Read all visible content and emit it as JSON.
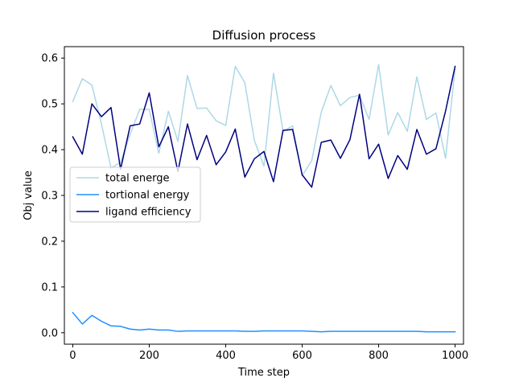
{
  "chart_data": {
    "type": "line",
    "title": "Diffusion process",
    "xlabel": "Time step",
    "ylabel": "Obj value",
    "xlim": [
      -22,
      1022
    ],
    "ylim": [
      -0.025,
      0.625
    ],
    "xticks": [
      0,
      200,
      400,
      600,
      800,
      1000
    ],
    "yticks": [
      0.0,
      0.1,
      0.2,
      0.3,
      0.4,
      0.5,
      0.6
    ],
    "ytick_labels": [
      "0.0",
      "0.1",
      "0.2",
      "0.3",
      "0.4",
      "0.5",
      "0.6"
    ],
    "grid": false,
    "legend_position": "center-left",
    "x": [
      0,
      25,
      50,
      75,
      100,
      125,
      150,
      175,
      200,
      225,
      250,
      275,
      300,
      325,
      350,
      375,
      400,
      425,
      450,
      475,
      500,
      525,
      550,
      575,
      600,
      625,
      650,
      675,
      700,
      725,
      750,
      775,
      800,
      825,
      850,
      875,
      900,
      925,
      950,
      975,
      1000
    ],
    "series": [
      {
        "name": "total energe",
        "color": "#add8e6",
        "values": [
          0.505,
          0.555,
          0.541,
          0.456,
          0.36,
          0.372,
          0.434,
          0.488,
          0.488,
          0.392,
          0.484,
          0.418,
          0.562,
          0.49,
          0.491,
          0.463,
          0.453,
          0.582,
          0.546,
          0.42,
          0.364,
          0.567,
          0.44,
          0.452,
          0.343,
          0.376,
          0.482,
          0.54,
          0.496,
          0.514,
          0.519,
          0.466,
          0.586,
          0.432,
          0.481,
          0.44,
          0.559,
          0.466,
          0.48,
          0.381,
          0.576
        ]
      },
      {
        "name": "tortional energy",
        "color": "#1e90ff",
        "values": [
          0.044,
          0.019,
          0.038,
          0.025,
          0.015,
          0.014,
          0.008,
          0.006,
          0.008,
          0.006,
          0.006,
          0.003,
          0.004,
          0.004,
          0.004,
          0.004,
          0.004,
          0.004,
          0.003,
          0.003,
          0.004,
          0.004,
          0.004,
          0.004,
          0.004,
          0.003,
          0.002,
          0.003,
          0.003,
          0.003,
          0.003,
          0.003,
          0.003,
          0.003,
          0.003,
          0.003,
          0.003,
          0.002,
          0.002,
          0.002,
          0.002
        ]
      },
      {
        "name": "ligand efficiency",
        "color": "#000080",
        "values": [
          0.428,
          0.39,
          0.5,
          0.472,
          0.492,
          0.357,
          0.452,
          0.456,
          0.524,
          0.406,
          0.45,
          0.352,
          0.456,
          0.378,
          0.431,
          0.367,
          0.395,
          0.445,
          0.34,
          0.38,
          0.396,
          0.33,
          0.442,
          0.444,
          0.345,
          0.318,
          0.416,
          0.421,
          0.381,
          0.422,
          0.521,
          0.38,
          0.412,
          0.337,
          0.387,
          0.357,
          0.444,
          0.39,
          0.402,
          0.484,
          0.582
        ]
      }
    ]
  }
}
